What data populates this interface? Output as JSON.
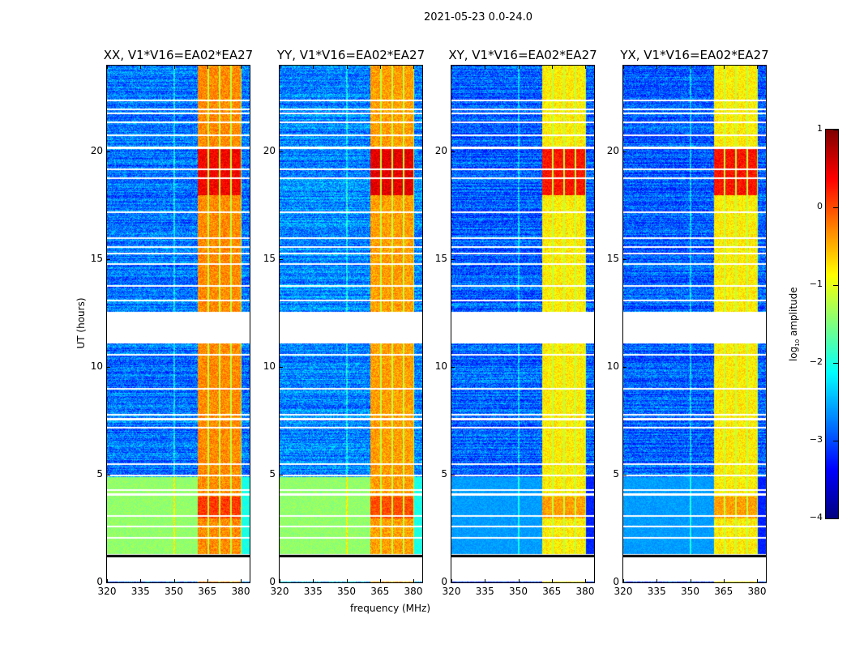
{
  "chart_data": {
    "type": "heatmap",
    "suptitle": "2021-05-23 0.0-24.0",
    "xlabel": "frequency (MHz)",
    "ylabel": "UT (hours)",
    "xlim": [
      320,
      384
    ],
    "ylim": [
      0,
      24
    ],
    "xticks": [
      "320",
      "335",
      "350",
      "365",
      "380"
    ],
    "xtick_values": [
      320,
      335,
      350,
      365,
      380
    ],
    "yticks": [
      "0",
      "5",
      "10",
      "15",
      "20"
    ],
    "ytick_values": [
      0,
      5,
      10,
      15,
      20
    ],
    "colorbar": {
      "label": "log10 amplitude",
      "label_main": "log",
      "label_sub": "10",
      "label_rest": " amplitude",
      "range": [
        -4,
        1
      ],
      "ticks": [
        "1",
        "0",
        "−1",
        "−2",
        "−3",
        "−4"
      ],
      "tick_values": [
        1,
        0,
        -1,
        -2,
        -3,
        -4
      ],
      "colormap": "jet"
    },
    "panels": [
      {
        "title": "XX, V1*V16=EA02*EA27",
        "background_level": -2.8,
        "low_hours_level": -1.4,
        "rfi_level": -0.3,
        "peak_level": 0.4
      },
      {
        "title": "YY, V1*V16=EA02*EA27",
        "background_level": -2.7,
        "low_hours_level": -1.4,
        "rfi_level": -0.4,
        "peak_level": 0.5
      },
      {
        "title": "XY, V1*V16=EA02*EA27",
        "background_level": -2.9,
        "low_hours_level": -2.6,
        "rfi_level": -0.8,
        "peak_level": 0.3
      },
      {
        "title": "YX, V1*V16=EA02*EA27",
        "background_level": -2.9,
        "low_hours_level": -2.6,
        "rfi_level": -0.8,
        "peak_level": 0.3
      }
    ],
    "rfi_band_mhz": [
      360,
      380
    ],
    "flagged_gaps_hours": [
      [
        0.05,
        1.2
      ],
      [
        11.1,
        12.6
      ]
    ],
    "flagged_line_hours": [
      1.3,
      2.1,
      2.6,
      3.1,
      4.1,
      4.3,
      5.0,
      5.5,
      7.2,
      7.6,
      7.8,
      9.0,
      10.6,
      13.1,
      13.8,
      14.8,
      15.3,
      15.6,
      16.0,
      17.2,
      18.8,
      19.2,
      20.2,
      20.8,
      21.4,
      21.8,
      22.0,
      22.4
    ]
  }
}
